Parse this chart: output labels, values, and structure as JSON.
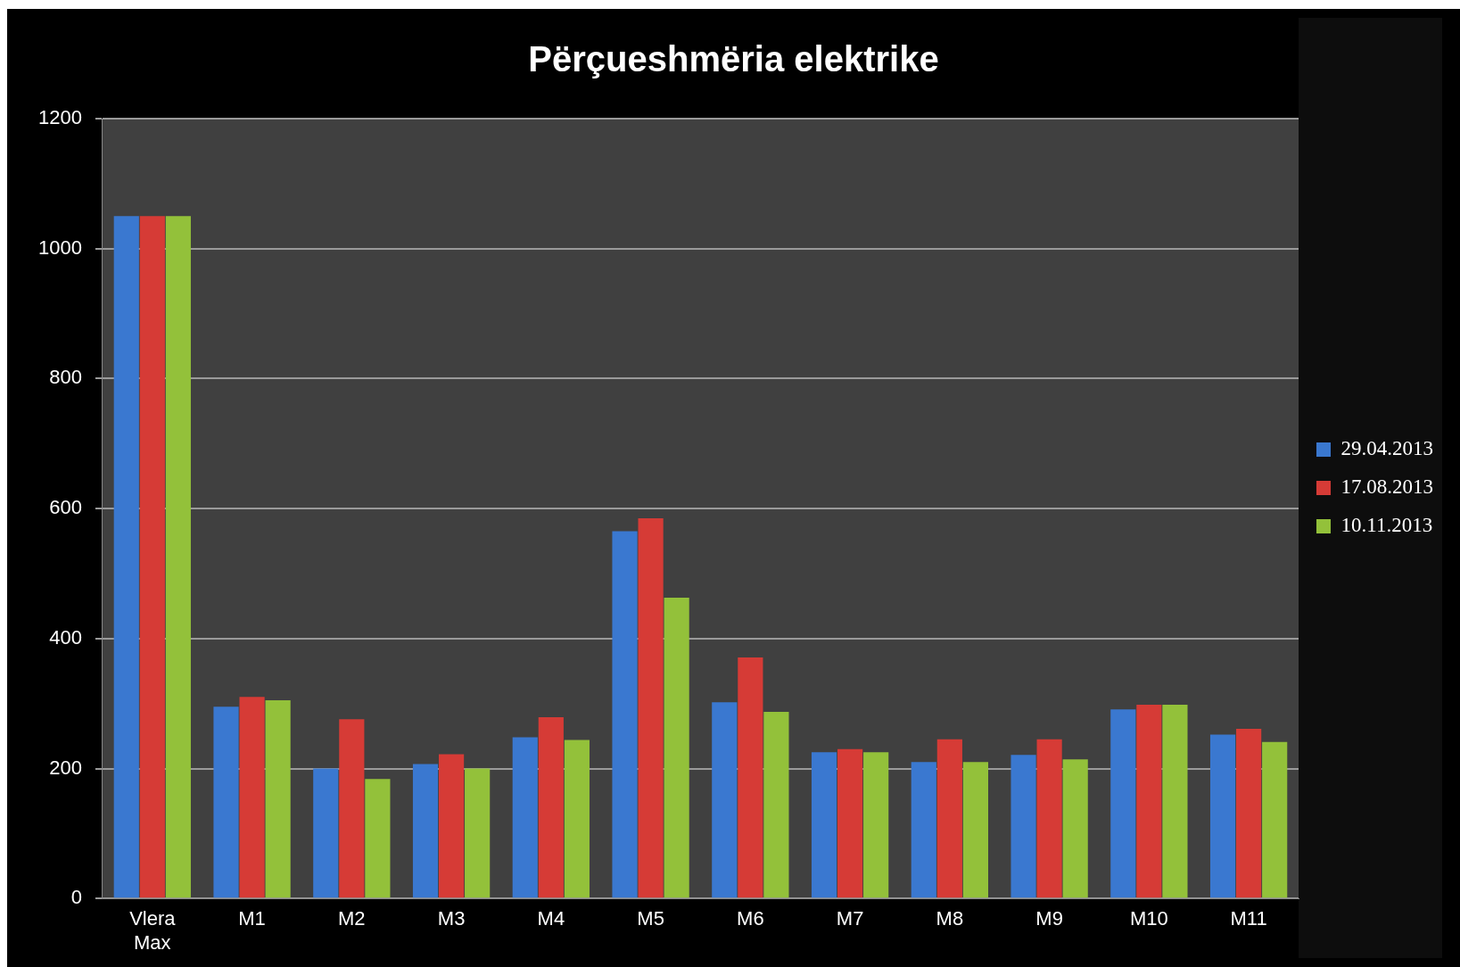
{
  "chart_data": {
    "type": "bar",
    "title": "Përçueshmëria elektrike",
    "categories": [
      "Vlera Max",
      "M1",
      "M2",
      "M3",
      "M4",
      "M5",
      "M6",
      "M7",
      "M8",
      "M9",
      "M10",
      "M11"
    ],
    "series": [
      {
        "name": "29.04.2013",
        "color": "#3a78d0",
        "values": [
          1050,
          295,
          200,
          207,
          248,
          565,
          302,
          225,
          210,
          221,
          291,
          252
        ]
      },
      {
        "name": "17.08.2013",
        "color": "#d63b36",
        "values": [
          1050,
          310,
          276,
          222,
          279,
          585,
          371,
          230,
          245,
          245,
          298,
          261
        ]
      },
      {
        "name": "10.11.2013",
        "color": "#93c13a",
        "values": [
          1050,
          305,
          184,
          200,
          244,
          463,
          287,
          225,
          210,
          214,
          298,
          241
        ]
      }
    ],
    "ylim": [
      0,
      1200
    ],
    "yticks": [
      0,
      200,
      400,
      600,
      800,
      1000,
      1200
    ],
    "grid": "y",
    "legend": "right"
  }
}
